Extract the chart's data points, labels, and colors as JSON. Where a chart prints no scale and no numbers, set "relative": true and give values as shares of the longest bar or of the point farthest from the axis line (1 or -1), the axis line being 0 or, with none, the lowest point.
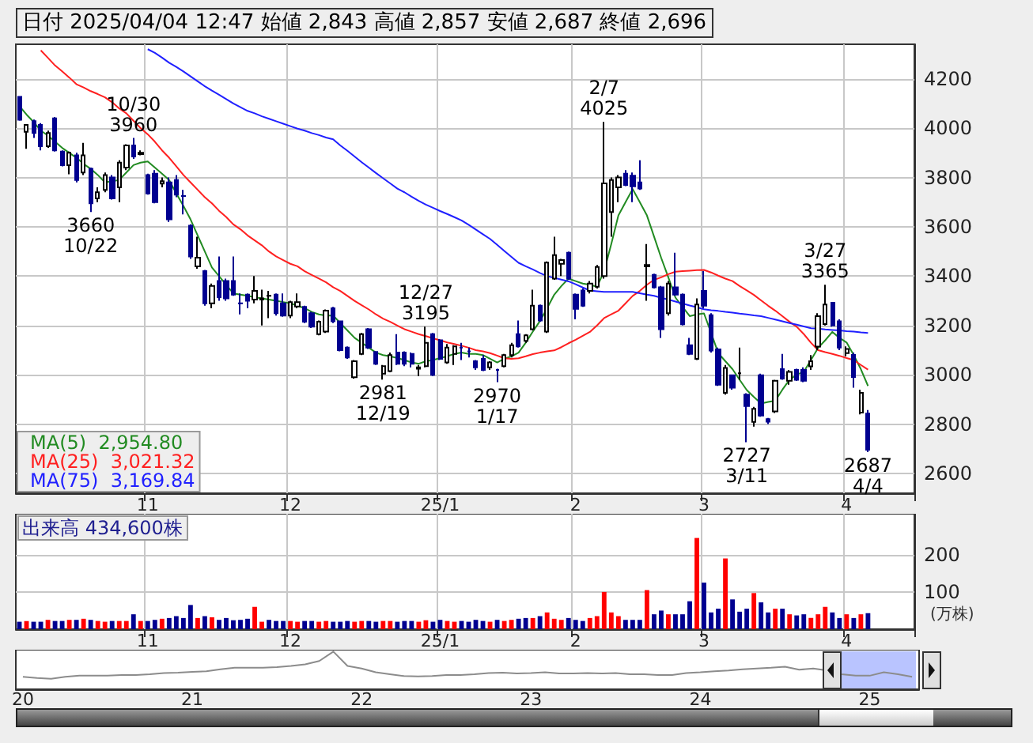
{
  "chart_data": [
    {
      "type": "candlestick",
      "title": "日付 2025/04/04 12:47 始値 2,843 高値 2,857 安値 2,687 終値 2,696",
      "categories": [
        null,
        null,
        null,
        null,
        null,
        null,
        null,
        null,
        null,
        null,
        null,
        null,
        null,
        null,
        null,
        null,
        null,
        null,
        "11",
        null,
        null,
        null,
        null,
        null,
        null,
        null,
        null,
        null,
        null,
        null,
        null,
        null,
        null,
        null,
        null,
        null,
        null,
        null,
        "12",
        null,
        null,
        null,
        null,
        null,
        null,
        null,
        null,
        null,
        null,
        null,
        null,
        null,
        null,
        null,
        null,
        null,
        null,
        null,
        null,
        "25/1",
        null,
        null,
        null,
        null,
        null,
        null,
        null,
        null,
        null,
        null,
        null,
        null,
        null,
        null,
        null,
        null,
        null,
        null,
        "2",
        null,
        null,
        null,
        null,
        null,
        null,
        null,
        null,
        null,
        null,
        null,
        null,
        null,
        null,
        null,
        null,
        null,
        "3",
        null,
        null,
        null,
        null,
        null,
        null,
        null,
        null,
        null,
        null,
        null,
        null,
        null,
        null,
        null,
        null,
        null,
        null,
        null,
        "4",
        null,
        null,
        null
      ],
      "ohlc": [
        [
          4127,
          4130,
          4030,
          4034
        ],
        [
          3985,
          4015,
          3916,
          4013
        ],
        [
          4028,
          4035,
          3960,
          3980
        ],
        [
          4013,
          4020,
          3910,
          3927
        ],
        [
          3927,
          3990,
          3920,
          3980
        ],
        [
          4040,
          4045,
          3905,
          3910
        ],
        [
          3905,
          3910,
          3845,
          3850
        ],
        [
          3850,
          3905,
          3813,
          3900
        ],
        [
          3890,
          3900,
          3780,
          3790
        ],
        [
          3820,
          3940,
          3810,
          3890
        ],
        [
          3835,
          3840,
          3660,
          3695
        ],
        [
          3715,
          3760,
          3700,
          3740
        ],
        [
          3750,
          3820,
          3740,
          3810
        ],
        [
          3800,
          3810,
          3710,
          3715
        ],
        [
          3760,
          3870,
          3700,
          3860
        ],
        [
          3840,
          3935,
          3830,
          3930
        ],
        [
          3930,
          3960,
          3875,
          3885
        ],
        [
          3895,
          3910,
          3890,
          3900
        ],
        [
          3810,
          3815,
          3730,
          3735
        ],
        [
          3815,
          3830,
          3695,
          3700
        ],
        [
          3775,
          3800,
          3760,
          3785
        ],
        [
          3780,
          3800,
          3620,
          3630
        ],
        [
          3790,
          3810,
          3720,
          3730
        ],
        [
          3725,
          3750,
          3650,
          3725
        ],
        [
          3605,
          3610,
          3470,
          3480
        ],
        [
          3440,
          3560,
          3430,
          3475
        ],
        [
          3420,
          3425,
          3280,
          3290
        ],
        [
          3290,
          3370,
          3270,
          3360
        ],
        [
          3380,
          3480,
          3300,
          3315
        ],
        [
          3380,
          3390,
          3300,
          3310
        ],
        [
          3380,
          3480,
          3320,
          3325
        ],
        [
          3290,
          3330,
          3245,
          3290
        ],
        [
          3325,
          3330,
          3270,
          3300
        ],
        [
          3305,
          3400,
          3290,
          3340
        ],
        [
          3305,
          3345,
          3200,
          3310
        ],
        [
          3320,
          3340,
          3230,
          3320
        ],
        [
          3325,
          3330,
          3240,
          3250
        ],
        [
          3290,
          3330,
          3235,
          3240
        ],
        [
          3240,
          3300,
          3230,
          3295
        ],
        [
          3277,
          3330,
          3270,
          3295
        ],
        [
          3275,
          3280,
          3210,
          3215
        ],
        [
          3250,
          3255,
          3190,
          3195
        ],
        [
          3165,
          3220,
          3160,
          3215
        ],
        [
          3175,
          3265,
          3170,
          3260
        ],
        [
          3270,
          3275,
          3210,
          3217
        ],
        [
          3217,
          3220,
          3095,
          3100
        ],
        [
          3110,
          3115,
          3065,
          3070
        ],
        [
          2990,
          3060,
          2985,
          3055
        ],
        [
          3085,
          3170,
          3080,
          3165
        ],
        [
          3185,
          3190,
          3105,
          3110
        ],
        [
          3093,
          3095,
          3040,
          3045
        ],
        [
          3005,
          3040,
          2981,
          3035
        ],
        [
          3015,
          3090,
          3010,
          3080
        ],
        [
          3090,
          3165,
          3040,
          3045
        ],
        [
          3090,
          3095,
          3035,
          3045
        ],
        [
          3085,
          3090,
          3030,
          3045
        ],
        [
          3025,
          3040,
          2995,
          3030
        ],
        [
          3035,
          3195,
          3030,
          3130
        ],
        [
          3165,
          3170,
          2995,
          3000
        ],
        [
          3140,
          3145,
          3060,
          3065
        ],
        [
          3050,
          3125,
          3045,
          3110
        ],
        [
          3085,
          3120,
          3040,
          3115
        ],
        [
          3110,
          3130,
          3060,
          3110
        ],
        [
          3095,
          3110,
          3070,
          3095
        ],
        [
          3055,
          3060,
          3020,
          3030
        ],
        [
          3065,
          3080,
          3015,
          3020
        ],
        [
          3030,
          3055,
          3020,
          3050
        ],
        [
          3020,
          3025,
          2970,
          3020
        ],
        [
          3035,
          3085,
          3030,
          3080
        ],
        [
          3080,
          3130,
          3070,
          3120
        ],
        [
          3165,
          3220,
          3110,
          3115
        ],
        [
          3138,
          3165,
          3130,
          3160
        ],
        [
          3185,
          3345,
          3180,
          3280
        ],
        [
          3280,
          3285,
          3215,
          3220
        ],
        [
          3175,
          3460,
          3170,
          3455
        ],
        [
          3390,
          3560,
          3385,
          3485
        ],
        [
          3450,
          3470,
          3400,
          3465
        ],
        [
          3495,
          3500,
          3385,
          3390
        ],
        [
          3325,
          3330,
          3225,
          3267
        ],
        [
          3342,
          3350,
          3275,
          3280
        ],
        [
          3340,
          3380,
          3330,
          3370
        ],
        [
          3357,
          3445,
          3350,
          3437
        ],
        [
          3400,
          4025,
          3390,
          3776
        ],
        [
          3660,
          3800,
          3560,
          3790
        ],
        [
          3760,
          3810,
          3700,
          3800
        ],
        [
          3815,
          3830,
          3765,
          3770
        ],
        [
          3807,
          3820,
          3700,
          3764
        ],
        [
          3780,
          3870,
          3750,
          3755
        ],
        [
          3440,
          3530,
          3300,
          3445
        ],
        [
          3405,
          3410,
          3350,
          3355
        ],
        [
          3355,
          3360,
          3150,
          3185
        ],
        [
          3250,
          3380,
          3240,
          3370
        ],
        [
          3355,
          3495,
          3320,
          3325
        ],
        [
          3325,
          3330,
          3200,
          3205
        ],
        [
          3120,
          3150,
          3080,
          3085
        ],
        [
          3065,
          3310,
          3060,
          3285
        ],
        [
          3340,
          3420,
          3270,
          3280
        ],
        [
          3242,
          3250,
          3090,
          3098
        ],
        [
          3103,
          3110,
          2955,
          2960
        ],
        [
          2927,
          3040,
          2920,
          3028
        ],
        [
          2998,
          3000,
          2940,
          2948
        ],
        [
          3006,
          3110,
          2980,
          3006
        ],
        [
          2920,
          2925,
          2727,
          2873
        ],
        [
          2809,
          2870,
          2790,
          2862
        ],
        [
          2998,
          3005,
          2830,
          2835
        ],
        [
          2820,
          2825,
          2800,
          2810
        ],
        [
          2852,
          2980,
          2845,
          2976
        ],
        [
          3023,
          3085,
          2980,
          2985
        ],
        [
          2976,
          3020,
          2960,
          3012
        ],
        [
          3020,
          3025,
          2975,
          2980
        ],
        [
          3020,
          3030,
          2970,
          2976
        ],
        [
          3034,
          3080,
          3020,
          3055
        ],
        [
          3114,
          3250,
          3100,
          3238
        ],
        [
          3206,
          3365,
          3200,
          3285
        ],
        [
          3292,
          3295,
          3195,
          3200
        ],
        [
          3217,
          3225,
          3100,
          3110
        ],
        [
          3088,
          3115,
          3075,
          3105
        ],
        [
          3081,
          3090,
          2948,
          2991
        ],
        [
          2847,
          2940,
          2840,
          2927
        ],
        [
          2843,
          2857,
          2687,
          2696
        ]
      ],
      "series": [
        {
          "name": "MA(5)  2,954.80",
          "type": "line",
          "color": "#228b22",
          "values": [
            4090,
            4055,
            4025,
            3990,
            3970,
            3945,
            3920,
            3900,
            3880,
            3855,
            3835,
            3810,
            3780,
            3785,
            3790,
            3820,
            3850,
            3860,
            3865,
            3840,
            3815,
            3790,
            3735,
            3685,
            3630,
            3565,
            3500,
            3435,
            3400,
            3365,
            3330,
            3325,
            3320,
            3315,
            3310,
            3305,
            3300,
            3295,
            3290,
            3280,
            3270,
            3255,
            3245,
            3240,
            3240,
            3210,
            3180,
            3150,
            3130,
            3110,
            3090,
            3080,
            3075,
            3068,
            3060,
            3050,
            3045,
            3055,
            3060,
            3068,
            3075,
            3085,
            3090,
            3085,
            3085,
            3080,
            3065,
            3050,
            3065,
            3075,
            3090,
            3130,
            3175,
            3218,
            3270,
            3325,
            3360,
            3390,
            3380,
            3370,
            3365,
            3357,
            3420,
            3530,
            3646,
            3700,
            3753,
            3700,
            3646,
            3560,
            3474,
            3395,
            3313,
            3275,
            3238,
            3245,
            3249,
            3170,
            3088,
            3055,
            3023,
            2980,
            2938,
            2910,
            2884,
            2890,
            2895,
            2940,
            2980,
            3000,
            3013,
            3060,
            3109,
            3140,
            3174,
            3150,
            3131,
            3080,
            3023,
            2955
          ]
        },
        {
          "name": "MA(25)  3,021.32",
          "type": "line",
          "color": "#ff2020",
          "values": [
            null,
            null,
            null,
            4315,
            4285,
            4254,
            4230,
            4205,
            4178,
            4165,
            4150,
            4138,
            4125,
            4105,
            4080,
            4060,
            4030,
            4000,
            3975,
            3945,
            3910,
            3880,
            3845,
            3810,
            3780,
            3750,
            3720,
            3695,
            3665,
            3640,
            3610,
            3590,
            3565,
            3545,
            3525,
            3500,
            3480,
            3465,
            3450,
            3440,
            3420,
            3405,
            3390,
            3375,
            3355,
            3340,
            3320,
            3300,
            3282,
            3265,
            3245,
            3228,
            3215,
            3200,
            3185,
            3175,
            3165,
            3157,
            3148,
            3140,
            3131,
            3125,
            3118,
            3110,
            3100,
            3095,
            3088,
            3078,
            3067,
            3065,
            3067,
            3075,
            3084,
            3090,
            3095,
            3099,
            3112,
            3128,
            3142,
            3158,
            3174,
            3200,
            3230,
            3245,
            3260,
            3290,
            3320,
            3340,
            3365,
            3385,
            3395,
            3408,
            3418,
            3420,
            3422,
            3424,
            3425,
            3415,
            3402,
            3390,
            3380,
            3360,
            3342,
            3324,
            3302,
            3280,
            3260,
            3238,
            3215,
            3195,
            3165,
            3130,
            3100,
            3092,
            3085,
            3077,
            3068,
            3060,
            3040,
            3021
          ]
        },
        {
          "name": "MA(75)  3,169.84",
          "type": "line",
          "color": "#2020ff",
          "values": [
            null,
            null,
            null,
            null,
            null,
            null,
            null,
            null,
            null,
            null,
            null,
            null,
            null,
            null,
            null,
            null,
            null,
            null,
            4320,
            4305,
            4286,
            4265,
            4248,
            4230,
            4210,
            4190,
            4170,
            4152,
            4135,
            4118,
            4100,
            4085,
            4070,
            4060,
            4048,
            4038,
            4028,
            4018,
            4008,
            3998,
            3990,
            3980,
            3972,
            3962,
            3955,
            3930,
            3908,
            3885,
            3862,
            3840,
            3818,
            3797,
            3776,
            3755,
            3740,
            3722,
            3705,
            3690,
            3677,
            3664,
            3652,
            3639,
            3626,
            3608,
            3589,
            3570,
            3551,
            3527,
            3502,
            3478,
            3454,
            3440,
            3427,
            3413,
            3400,
            3393,
            3386,
            3379,
            3367,
            3354,
            3342,
            3339,
            3336,
            3336,
            3336,
            3336,
            3336,
            3331,
            3325,
            3320,
            3312,
            3305,
            3297,
            3289,
            3281,
            3274,
            3266,
            3262,
            3259,
            3255,
            3252,
            3248,
            3245,
            3241,
            3238,
            3231,
            3224,
            3217,
            3210,
            3203,
            3196,
            3189,
            3187,
            3184,
            3182,
            3180,
            3177,
            3175,
            3172,
            3170
          ]
        }
      ],
      "ylim": [
        2520,
        4340
      ],
      "yticks": [
        2600,
        2800,
        3000,
        3200,
        3400,
        3600,
        3800,
        4000,
        4200
      ],
      "grid": true,
      "legend": "bottom left",
      "marker": "none",
      "annotations": [
        {
          "text": "10/30\n3960",
          "y": 3960
        },
        {
          "text": "3660\n10/22",
          "y": 3660
        },
        {
          "text": "12/27\n3195",
          "y": 3195
        },
        {
          "text": "2981\n12/19",
          "y": 2981
        },
        {
          "text": "2970\n1/17",
          "y": 2970
        },
        {
          "text": "2/7\n4025",
          "y": 4025
        },
        {
          "text": "3/27\n3365",
          "y": 3365
        },
        {
          "text": "2727\n3/11",
          "y": 2727
        },
        {
          "text": "2687\n4/4",
          "y": 2687
        }
      ]
    },
    {
      "type": "bar",
      "title": "出来高 434,600株",
      "ylabel": "(万株)",
      "categories": [
        null,
        null,
        null,
        null,
        null,
        null,
        null,
        null,
        null,
        null,
        null,
        null,
        null,
        null,
        null,
        null,
        null,
        null,
        "11",
        null,
        null,
        null,
        null,
        null,
        null,
        null,
        null,
        null,
        null,
        null,
        null,
        null,
        null,
        null,
        null,
        null,
        null,
        null,
        "12",
        null,
        null,
        null,
        null,
        null,
        null,
        null,
        null,
        null,
        null,
        null,
        null,
        null,
        null,
        null,
        null,
        null,
        null,
        null,
        null,
        "25/1",
        null,
        null,
        null,
        null,
        null,
        null,
        null,
        null,
        null,
        null,
        null,
        null,
        null,
        null,
        null,
        null,
        null,
        null,
        "2",
        null,
        null,
        null,
        null,
        null,
        null,
        null,
        null,
        null,
        null,
        null,
        null,
        null,
        null,
        null,
        null,
        null,
        "3",
        null,
        null,
        null,
        null,
        null,
        null,
        null,
        null,
        null,
        null,
        null,
        null,
        null,
        null,
        null,
        null,
        null,
        null,
        null,
        "4",
        null,
        null,
        null
      ],
      "values": [
        20,
        22,
        20,
        20,
        25,
        22,
        22,
        25,
        25,
        28,
        25,
        22,
        20,
        22,
        22,
        22,
        40,
        22,
        22,
        25,
        28,
        30,
        35,
        30,
        65,
        30,
        35,
        32,
        25,
        30,
        24,
        25,
        28,
        60,
        20,
        25,
        22,
        22,
        22,
        20,
        22,
        22,
        20,
        22,
        20,
        20,
        22,
        20,
        22,
        22,
        20,
        22,
        22,
        20,
        22,
        22,
        20,
        24,
        20,
        25,
        22,
        20,
        22,
        20,
        25,
        22,
        20,
        25,
        22,
        25,
        28,
        30,
        30,
        35,
        45,
        28,
        25,
        30,
        25,
        22,
        30,
        35,
        100,
        45,
        35,
        25,
        25,
        25,
        105,
        40,
        50,
        40,
        40,
        40,
        75,
        245,
        125,
        45,
        55,
        190,
        80,
        47,
        55,
        97,
        72,
        45,
        55,
        55,
        40,
        37,
        40,
        30,
        40,
        60,
        45,
        30,
        40,
        30,
        40,
        43
      ],
      "colors": [
        "#000090",
        "#ff0000",
        "#000090",
        "#000090",
        "#ff0000",
        "#000090",
        "#000090",
        "#ff0000",
        "#000090",
        "#ff0000",
        "#000090",
        "#ff0000",
        "#ff0000",
        "#000090",
        "#ff0000",
        "#ff0000",
        "#000090",
        "#ff0000",
        "#000090",
        "#000090",
        "#ff0000",
        "#000090",
        "#000090",
        "#000090",
        "#000090",
        "#ff0000",
        "#000090",
        "#ff0000",
        "#000090",
        "#000090",
        "#000090",
        "#000090",
        "#000090",
        "#ff0000",
        "#ff0000",
        "#000090",
        "#000090",
        "#000090",
        "#ff0000",
        "#ff0000",
        "#000090",
        "#000090",
        "#ff0000",
        "#ff0000",
        "#000090",
        "#000090",
        "#000090",
        "#ff0000",
        "#ff0000",
        "#000090",
        "#000090",
        "#ff0000",
        "#ff0000",
        "#000090",
        "#000090",
        "#000090",
        "#ff0000",
        "#ff0000",
        "#000090",
        "#000090",
        "#ff0000",
        "#ff0000",
        "#000090",
        "#000090",
        "#000090",
        "#000090",
        "#ff0000",
        "#000090",
        "#ff0000",
        "#ff0000",
        "#000090",
        "#000090",
        "#ff0000",
        "#000090",
        "#ff0000",
        "#ff0000",
        "#ff0000",
        "#000090",
        "#000090",
        "#000090",
        "#ff0000",
        "#ff0000",
        "#ff0000",
        "#ff0000",
        "#ff0000",
        "#000090",
        "#000090",
        "#000090",
        "#ff0000",
        "#000090",
        "#000090",
        "#ff0000",
        "#000090",
        "#000090",
        "#000090",
        "#ff0000",
        "#000090",
        "#000090",
        "#000090",
        "#ff0000",
        "#000090",
        "#000090",
        "#000090",
        "#ff0000",
        "#000090",
        "#000090",
        "#ff0000",
        "#000090",
        "#ff0000",
        "#000090",
        "#000090",
        "#ff0000",
        "#ff0000",
        "#ff0000",
        "#000090",
        "#000090",
        "#ff0000",
        "#000090",
        "#ff0000",
        "#000090"
      ],
      "ylim": [
        0,
        310
      ],
      "yticks": [
        100,
        200
      ],
      "grid": true
    },
    {
      "type": "line",
      "relative": true,
      "color": "#8c8c8c",
      "categories": [
        "20",
        null,
        null,
        null,
        null,
        null,
        null,
        null,
        null,
        null,
        null,
        null,
        "21",
        null,
        null,
        null,
        null,
        null,
        null,
        null,
        null,
        null,
        null,
        null,
        "22",
        null,
        null,
        null,
        null,
        null,
        null,
        null,
        null,
        null,
        null,
        null,
        "23",
        null,
        null,
        null,
        null,
        null,
        null,
        null,
        null,
        null,
        null,
        null,
        "24",
        null,
        null,
        null,
        null,
        null,
        null,
        null,
        null,
        null,
        null,
        null,
        "25",
        null,
        null,
        null
      ],
      "values": [
        0.33,
        0.3,
        0.28,
        0.33,
        0.36,
        0.36,
        0.36,
        0.38,
        0.38,
        0.4,
        0.43,
        0.44,
        0.46,
        0.48,
        0.53,
        0.57,
        0.57,
        0.57,
        0.59,
        0.62,
        0.66,
        0.75,
        1.0,
        0.62,
        0.55,
        0.45,
        0.4,
        0.35,
        0.34,
        0.35,
        0.38,
        0.38,
        0.4,
        0.43,
        0.44,
        0.42,
        0.43,
        0.45,
        0.42,
        0.42,
        0.43,
        0.42,
        0.43,
        0.4,
        0.4,
        0.38,
        0.38,
        0.43,
        0.45,
        0.48,
        0.5,
        0.53,
        0.55,
        0.57,
        0.6,
        0.52,
        0.55,
        0.5,
        0.4,
        0.36,
        0.36,
        0.45,
        0.4,
        0.33
      ]
    }
  ]
}
